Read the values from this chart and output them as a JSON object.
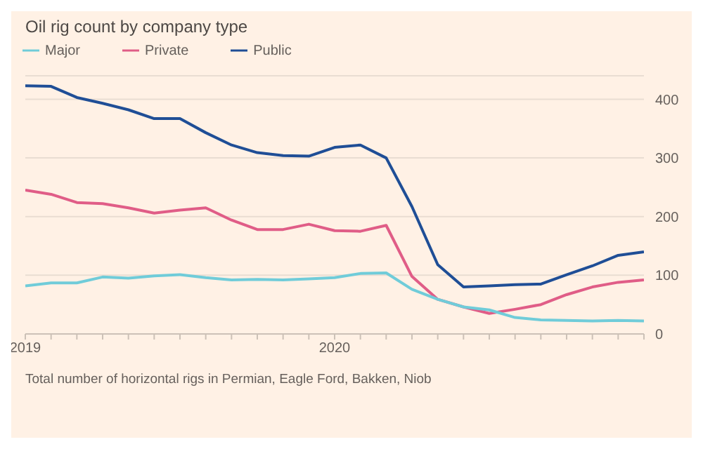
{
  "chart_data": {
    "type": "line",
    "title": "Oil rig count by company type",
    "x": [
      "2019-01",
      "2019-02",
      "2019-03",
      "2019-04",
      "2019-05",
      "2019-06",
      "2019-07",
      "2019-08",
      "2019-09",
      "2019-10",
      "2019-11",
      "2019-12",
      "2020-01",
      "2020-02",
      "2020-03",
      "2020-04",
      "2020-05",
      "2020-06",
      "2020-07",
      "2020-08",
      "2020-09",
      "2020-10",
      "2020-11",
      "2020-12",
      "2021-01"
    ],
    "series": [
      {
        "name": "Public",
        "color": "#1f4e96",
        "values": [
          423,
          422,
          403,
          393,
          382,
          367,
          367,
          343,
          322,
          309,
          304,
          303,
          318,
          322,
          300,
          217,
          118,
          80,
          82,
          84,
          85,
          101,
          116,
          134,
          140
        ]
      },
      {
        "name": "Private",
        "color": "#e05d87",
        "values": [
          245,
          238,
          224,
          222,
          215,
          206,
          211,
          215,
          194,
          178,
          178,
          187,
          176,
          175,
          185,
          98,
          59,
          46,
          35,
          42,
          50,
          67,
          80,
          88,
          92
        ]
      },
      {
        "name": "Major",
        "color": "#70ccd9",
        "values": [
          82,
          87,
          87,
          97,
          95,
          99,
          101,
          96,
          92,
          93,
          92,
          94,
          96,
          103,
          104,
          76,
          59,
          46,
          41,
          28,
          24,
          23,
          22,
          23,
          22
        ]
      }
    ],
    "xlim": [
      "2019-01",
      "2021-01"
    ],
    "xticks": [
      {
        "value": "2019-01",
        "label": "2019"
      },
      {
        "value": "2019-02",
        "label": null
      },
      {
        "value": "2019-03",
        "label": null
      },
      {
        "value": "2019-04",
        "label": null
      },
      {
        "value": "2019-05",
        "label": null
      },
      {
        "value": "2019-06",
        "label": null
      },
      {
        "value": "2019-07",
        "label": null
      },
      {
        "value": "2019-08",
        "label": null
      },
      {
        "value": "2019-09",
        "label": null
      },
      {
        "value": "2019-10",
        "label": null
      },
      {
        "value": "2019-11",
        "label": null
      },
      {
        "value": "2019-12",
        "label": null
      },
      {
        "value": "2020-01",
        "label": "2020"
      },
      {
        "value": "2020-02",
        "label": null
      },
      {
        "value": "2020-03",
        "label": null
      },
      {
        "value": "2020-04",
        "label": null
      },
      {
        "value": "2020-05",
        "label": null
      },
      {
        "value": "2020-06",
        "label": null
      },
      {
        "value": "2020-07",
        "label": null
      },
      {
        "value": "2020-08",
        "label": null
      },
      {
        "value": "2020-09",
        "label": null
      },
      {
        "value": "2020-10",
        "label": null
      },
      {
        "value": "2020-11",
        "label": null
      },
      {
        "value": "2020-12",
        "label": null
      },
      {
        "value": "2021-01",
        "label": null
      }
    ],
    "ylim": [
      0,
      440
    ],
    "yticks": [
      0,
      100,
      200,
      300,
      400
    ],
    "grid": "y",
    "legend": "top left",
    "marker": "none",
    "line_style": "solid",
    "annotations": [
      "Total number of horizontal rigs in Permian, Eagle Ford, Bakken, Niob"
    ]
  }
}
